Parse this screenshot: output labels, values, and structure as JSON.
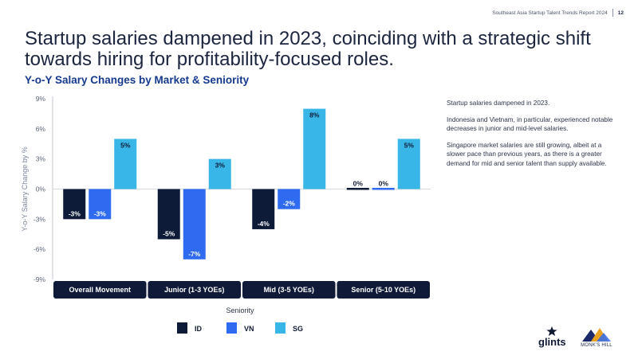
{
  "header": {
    "report_name": "Southeast Asia Startup Talent Trends Report 2024",
    "page_number": "12"
  },
  "headline": "Startup salaries dampened in 2023, coinciding with a strategic shift towards hiring for profitability-focused roles.",
  "chart_data": {
    "type": "bar",
    "title": "Y-o-Y Salary Changes by Market & Seniority",
    "xlabel": "Seniority",
    "ylabel": "Y-o-Y Salary Change by %",
    "ylim": [
      -9,
      9
    ],
    "yticks": [
      "9%",
      "6%",
      "3%",
      "0%",
      "-3%",
      "-6%",
      "-9%"
    ],
    "categories": [
      "Overall Movement",
      "Junior (1-3 YOEs)",
      "Mid (3-5 YOEs)",
      "Senior (5-10 YOEs)"
    ],
    "series": [
      {
        "name": "ID",
        "color": "#0d1b38",
        "values": [
          -3,
          -5,
          -4,
          0
        ],
        "labels": [
          "-3%",
          "-5%",
          "-4%",
          "0%"
        ]
      },
      {
        "name": "VN",
        "color": "#2f6bf0",
        "values": [
          -3,
          -7,
          -2,
          0
        ],
        "labels": [
          "-3%",
          "-7%",
          "-2%",
          "0%"
        ]
      },
      {
        "name": "SG",
        "color": "#39b6e8",
        "values": [
          5,
          3,
          8,
          5
        ],
        "labels": [
          "5%",
          "3%",
          "8%",
          "5%"
        ]
      }
    ],
    "legend_position": "bottom",
    "grid": false
  },
  "notes": [
    "Startup salaries dampened in 2023.",
    "Indonesia and Vietnam, in particular, experienced notable decreases in junior and mid-level salaries.",
    "Singapore market salaries are still growing, albeit at a slower pace than previous years, as there is a greater demand for mid and senior talent than supply available."
  ],
  "logos": {
    "glints": "glints",
    "monks_hill": "MONK'S HILL"
  }
}
